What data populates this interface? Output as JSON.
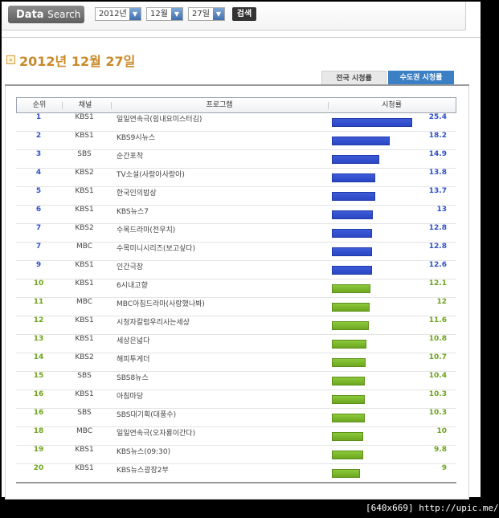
{
  "search": {
    "label_bold": "Data",
    "label_light": "Search",
    "year": "2012년",
    "month": "12월",
    "day": "27일",
    "button": "검색"
  },
  "title": "2012년 12월 27일",
  "tabs": {
    "national": "전국 시청률",
    "capital": "수도권 시청률"
  },
  "headers": {
    "rank": "순위",
    "channel": "채널",
    "program": "프로그램",
    "rating": "시청률"
  },
  "colors": {
    "blue": "#2d51c9",
    "green": "#6da31c",
    "title": "#c98a2a",
    "tab_active": "#3b7fc4"
  },
  "rows": [
    {
      "rank": "1",
      "channel": "KBS1",
      "program": "일일연속극(힘내요미스터김)",
      "rating": "25.4",
      "value": 25.4,
      "color": "blue"
    },
    {
      "rank": "2",
      "channel": "KBS1",
      "program": "KBS9시뉴스",
      "rating": "18.2",
      "value": 18.2,
      "color": "blue"
    },
    {
      "rank": "3",
      "channel": "SBS",
      "program": "순간포착",
      "rating": "14.9",
      "value": 14.9,
      "color": "blue"
    },
    {
      "rank": "4",
      "channel": "KBS2",
      "program": "TV소설(사랑아사랑아)",
      "rating": "13.8",
      "value": 13.8,
      "color": "blue"
    },
    {
      "rank": "5",
      "channel": "KBS1",
      "program": "한국인의밥상",
      "rating": "13.7",
      "value": 13.7,
      "color": "blue"
    },
    {
      "rank": "6",
      "channel": "KBS1",
      "program": "KBS뉴스7",
      "rating": "13",
      "value": 13,
      "color": "blue"
    },
    {
      "rank": "7",
      "channel": "KBS2",
      "program": "수목드라마(전우치)",
      "rating": "12.8",
      "value": 12.8,
      "color": "blue"
    },
    {
      "rank": "7",
      "channel": "MBC",
      "program": "수목미니시리즈(보고싶다)",
      "rating": "12.8",
      "value": 12.8,
      "color": "blue"
    },
    {
      "rank": "9",
      "channel": "KBS1",
      "program": "인간극장",
      "rating": "12.6",
      "value": 12.6,
      "color": "blue"
    },
    {
      "rank": "10",
      "channel": "KBS1",
      "program": "6시내고향",
      "rating": "12.1",
      "value": 12.1,
      "color": "green"
    },
    {
      "rank": "11",
      "channel": "MBC",
      "program": "MBC아침드라마(사랑했나봐)",
      "rating": "12",
      "value": 12,
      "color": "green"
    },
    {
      "rank": "12",
      "channel": "KBS1",
      "program": "시청자칼럼우리사는세상",
      "rating": "11.6",
      "value": 11.6,
      "color": "green"
    },
    {
      "rank": "13",
      "channel": "KBS1",
      "program": "세상은넓다",
      "rating": "10.8",
      "value": 10.8,
      "color": "green"
    },
    {
      "rank": "14",
      "channel": "KBS2",
      "program": "해피투게더",
      "rating": "10.7",
      "value": 10.7,
      "color": "green"
    },
    {
      "rank": "15",
      "channel": "SBS",
      "program": "SBS8뉴스",
      "rating": "10.4",
      "value": 10.4,
      "color": "green"
    },
    {
      "rank": "16",
      "channel": "KBS1",
      "program": "아침마당",
      "rating": "10.3",
      "value": 10.3,
      "color": "green"
    },
    {
      "rank": "16",
      "channel": "SBS",
      "program": "SBS대기획(대풍수)",
      "rating": "10.3",
      "value": 10.3,
      "color": "green"
    },
    {
      "rank": "18",
      "channel": "MBC",
      "program": "일일연속극(오자룡이간다)",
      "rating": "10",
      "value": 10,
      "color": "green"
    },
    {
      "rank": "19",
      "channel": "KBS1",
      "program": "KBS뉴스(09:30)",
      "rating": "9.8",
      "value": 9.8,
      "color": "green"
    },
    {
      "rank": "20",
      "channel": "KBS1",
      "program": "KBS뉴스광장2부",
      "rating": "9",
      "value": 9,
      "color": "green"
    }
  ],
  "bar_max": 25.4,
  "footer": "[640x669] http://upic.me/"
}
